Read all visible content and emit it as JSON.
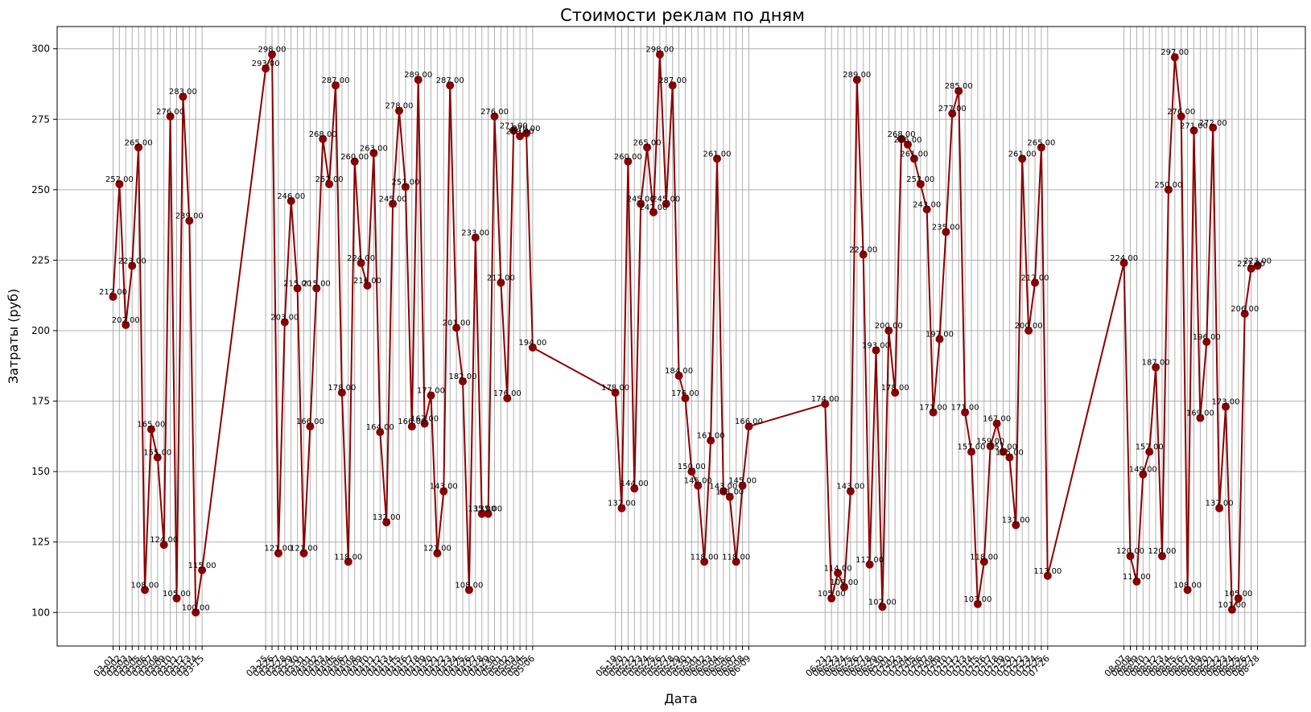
{
  "chart_data": {
    "type": "line",
    "title": "Стоимости реклам по дням",
    "xlabel": "Дата",
    "ylabel": "Затраты (руб)",
    "ylim": [
      88.1,
      307.9
    ],
    "yticks": [
      100,
      125,
      150,
      175,
      200,
      225,
      250,
      275,
      300
    ],
    "grid": true,
    "series_color": "#8b0000",
    "series": [
      {
        "x": [
          "03-01",
          "03-02",
          "03-03",
          "03-04",
          "03-05",
          "03-06",
          "03-07",
          "03-08",
          "03-09",
          "03-10",
          "03-11",
          "03-12",
          "03-13",
          "03-14",
          "03-15",
          "03-25",
          "03-26",
          "03-27",
          "03-28",
          "03-29",
          "03-30",
          "03-31",
          "04-01",
          "04-02",
          "04-03",
          "04-04",
          "04-05",
          "04-06",
          "04-07",
          "04-08",
          "04-09",
          "04-10",
          "04-11",
          "04-12",
          "04-13",
          "04-14",
          "04-15",
          "04-16",
          "04-17",
          "04-18",
          "04-19",
          "04-20",
          "04-21",
          "04-22",
          "04-23",
          "04-24",
          "04-25",
          "04-26",
          "04-27",
          "04-28",
          "04-29",
          "04-30",
          "05-01",
          "05-02",
          "05-03",
          "05-04",
          "05-05",
          "05-06",
          "05-19",
          "05-20",
          "05-21",
          "05-22",
          "05-23",
          "05-24",
          "05-25",
          "05-26",
          "05-27",
          "05-28",
          "05-29",
          "05-30",
          "05-31",
          "06-01",
          "06-02",
          "06-03",
          "06-04",
          "06-05",
          "06-06",
          "06-07",
          "06-08",
          "06-09",
          "06-21",
          "06-22",
          "06-23",
          "06-24",
          "06-25",
          "06-26",
          "06-27",
          "06-28",
          "06-29",
          "06-30",
          "07-01",
          "07-02",
          "07-03",
          "07-04",
          "07-05",
          "07-06",
          "07-07",
          "07-08",
          "07-09",
          "07-10",
          "07-11",
          "07-12",
          "07-13",
          "07-14",
          "07-15",
          "07-16",
          "07-17",
          "07-18",
          "07-19",
          "07-20",
          "07-21",
          "07-22",
          "07-23",
          "07-24",
          "07-25",
          "07-26",
          "08-07",
          "08-08",
          "08-09",
          "08-10",
          "08-11",
          "08-12",
          "08-13",
          "08-14",
          "08-15",
          "08-16",
          "08-17",
          "08-18",
          "08-19",
          "08-20",
          "08-21",
          "08-22",
          "08-23",
          "08-24",
          "08-25",
          "08-26",
          "08-27",
          "08-28"
        ],
        "values": [
          212,
          252,
          202,
          223,
          265,
          108,
          165,
          155,
          124,
          276,
          105,
          283,
          239,
          100,
          115,
          293,
          298,
          121,
          203,
          246,
          215,
          121,
          166,
          215,
          268,
          252,
          287,
          178,
          118,
          260,
          224,
          216,
          263,
          164,
          132,
          245,
          278,
          251,
          166,
          289,
          167,
          177,
          121,
          143,
          287,
          201,
          182,
          108,
          233,
          135,
          135,
          276,
          217,
          176,
          271,
          269,
          270,
          194,
          178,
          137,
          260,
          144,
          245,
          265,
          242,
          298,
          245,
          287,
          184,
          176,
          150,
          145,
          118,
          161,
          261,
          143,
          141,
          118,
          145,
          166,
          174,
          105,
          114,
          109,
          143,
          289,
          227,
          117,
          193,
          102,
          200,
          178,
          268,
          266,
          261,
          252,
          243,
          171,
          197,
          235,
          277,
          285,
          171,
          157,
          103,
          118,
          159,
          167,
          157,
          155,
          131,
          261,
          200,
          217,
          265,
          113,
          224,
          120,
          111,
          149,
          157,
          187,
          120,
          250,
          297,
          276,
          108,
          271,
          169,
          196,
          272,
          137,
          173,
          101,
          105,
          206,
          222,
          223
        ],
        "labels": [
          "212.00",
          "252.00",
          "202.00",
          "223.00",
          "265.00",
          "108.00",
          "165.00",
          "155.00",
          "124.00",
          "276.00",
          "105.00",
          "283.00",
          "239.00",
          "100.00",
          "115.00",
          "293.00",
          "298.00",
          "121.00",
          "203.00",
          "246.00",
          "215.00",
          "121.00",
          "166.00",
          "215.00",
          "268.00",
          "252.00",
          "287.00",
          "178.00",
          "118.00",
          "260.00",
          "224.00",
          "216.00",
          "263.00",
          "164.00",
          "132.00",
          "245.00",
          "278.00",
          "251.00",
          "166.00",
          "289.00",
          "167.00",
          "177.00",
          "121.00",
          "143.00",
          "287.00",
          "201.00",
          "182.00",
          "108.00",
          "233.00",
          "135.00",
          "135.00",
          "276.00",
          "217.00",
          "176.00",
          "271.00",
          "269.00",
          "270.00",
          "194.00",
          "178.00",
          "137.00",
          "260.00",
          "144.00",
          "245.00",
          "265.00",
          "242.00",
          "298.00",
          "245.00",
          "287.00",
          "184.00",
          "176.00",
          "150.00",
          "145.00",
          "118.00",
          "161.00",
          "261.00",
          "143.00",
          "141.00",
          "118.00",
          "145.00",
          "166.00",
          "174.00",
          "105.00",
          "114.00",
          "109.00",
          "143.00",
          "289.00",
          "227.00",
          "117.00",
          "193.00",
          "102.00",
          "200.00",
          "178.00",
          "268.00",
          "266.00",
          "261.00",
          "252.00",
          "243.00",
          "171.00",
          "197.00",
          "235.00",
          "277.00",
          "285.00",
          "171.00",
          "157.00",
          "103.00",
          "118.00",
          "159.00",
          "167.00",
          "157.00",
          "155.00",
          "131.00",
          "261.00",
          "200.00",
          "217.00",
          "265.00",
          "113.00",
          "224.00",
          "120.00",
          "111.00",
          "149.00",
          "157.00",
          "187.00",
          "120.00",
          "250.00",
          "297.00",
          "276.00",
          "108.00",
          "271.00",
          "169.00",
          "196.00",
          "272.00",
          "137.00",
          "173.00",
          "101.00",
          "105.00",
          "206.00",
          "222.00",
          "223.00"
        ]
      }
    ]
  }
}
